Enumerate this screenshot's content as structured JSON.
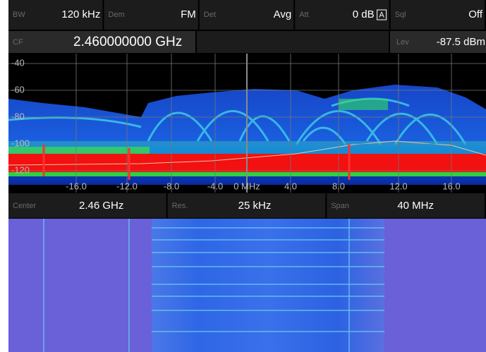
{
  "header": {
    "cells": [
      {
        "label": "BW",
        "value": "120 kHz"
      },
      {
        "label": "Dem",
        "value": "FM"
      },
      {
        "label": "Det",
        "value": "Avg"
      },
      {
        "label": "Att",
        "value": "0 dB",
        "badge": "A"
      },
      {
        "label": "Sql",
        "value": "Off"
      }
    ],
    "cf": {
      "label": "CF",
      "value": "2.460000000 GHz"
    },
    "lev": {
      "label": "Lev",
      "value": "-87.5 dBm"
    }
  },
  "spectrum": {
    "y_labels": [
      "-40",
      "-60",
      "-80",
      "-100",
      "-120"
    ],
    "x_labels": [
      "-16.0",
      "-12.0",
      "-8.0",
      "-4.0",
      "0 MHz",
      "4.0",
      "8.0",
      "12.0",
      "16.0"
    ]
  },
  "footer": {
    "cells": [
      {
        "label": "Center",
        "value": "2.46 GHz"
      },
      {
        "label": "Res.",
        "value": "25 kHz"
      },
      {
        "label": "Span",
        "value": "40 MHz"
      }
    ]
  }
}
